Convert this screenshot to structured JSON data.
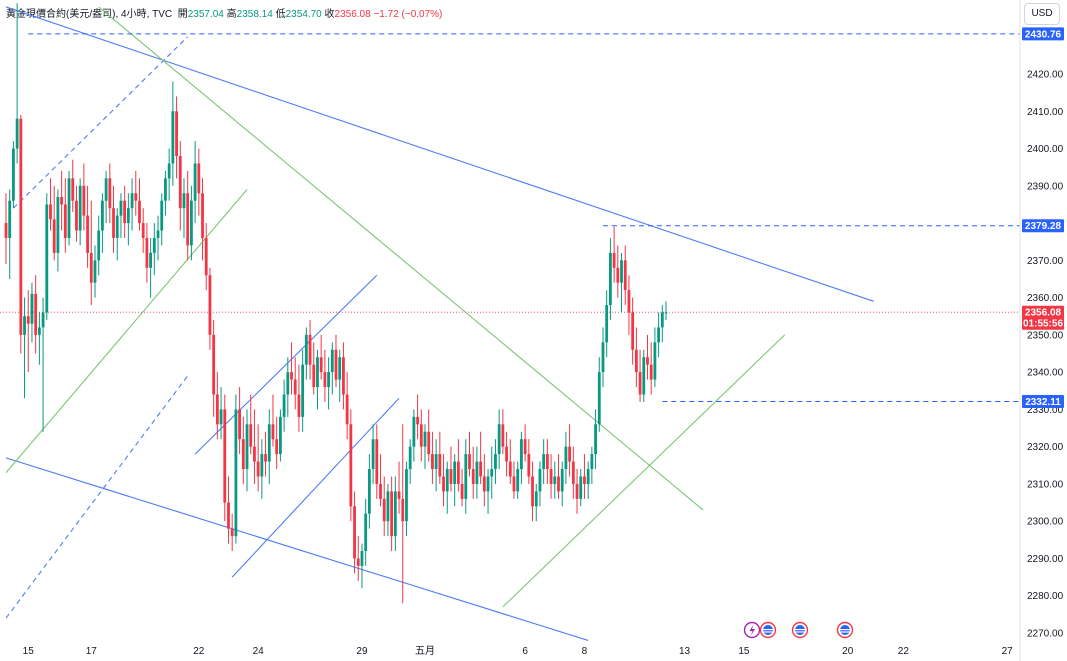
{
  "header": {
    "symbol": "黃金現價合約(美元/盎司)",
    "interval": "4小時",
    "source": "TVC",
    "open_label": "開",
    "open": "2357.04",
    "high_label": "高",
    "high": "2358.14",
    "low_label": "低",
    "low": "2354.70",
    "close_label": "收",
    "close": "2356.08",
    "change": "−1.72 (−0.07%)"
  },
  "currency_button": "USD",
  "colors": {
    "up": "#089981",
    "down": "#f23645",
    "blue": "#2962ff",
    "green": "#4caf50",
    "dashed_blue": "#2962ff",
    "tag_blue": "#2962ff",
    "tag_red": "#f23645"
  },
  "chart_data": {
    "type": "candlestick",
    "ylim": [
      2267,
      2439
    ],
    "y_ticks": [
      "2270.00",
      "2280.00",
      "2290.00",
      "2300.00",
      "2310.00",
      "2320.00",
      "2330.00",
      "2340.00",
      "2350.00",
      "2360.00",
      "2370.00",
      "2380.00",
      "2390.00",
      "2400.00",
      "2410.00",
      "2420.00"
    ],
    "y_tick_values": [
      2270,
      2280,
      2290,
      2300,
      2310,
      2320,
      2330,
      2340,
      2350,
      2360,
      2370,
      2380,
      2390,
      2400,
      2410,
      2420
    ],
    "x_labels": [
      "15",
      "17",
      "22",
      "24",
      "29",
      "五月",
      "6",
      "8",
      "13",
      "15",
      "20",
      "22",
      "27"
    ],
    "x_label_index": [
      6,
      23,
      52,
      68,
      96,
      113,
      140,
      156,
      183,
      199,
      227,
      242,
      270
    ],
    "grid": false,
    "price_tags": [
      {
        "label": "2430.76",
        "value": 2430.76,
        "color": "blue"
      },
      {
        "label": "2379.28",
        "value": 2379.28,
        "color": "blue"
      },
      {
        "label": "2356.08",
        "value": 2356.08,
        "color": "red",
        "sub": "01:55:56"
      },
      {
        "label": "2332.11",
        "value": 2332.11,
        "color": "blue"
      }
    ],
    "h_dashed_lines": [
      {
        "value": 2430.76,
        "from_index": 6
      },
      {
        "value": 2379.28,
        "from_index": 161
      },
      {
        "value": 2332.11,
        "from_index": 177
      }
    ],
    "trend_lines": [
      {
        "color": "blue",
        "style": "solid",
        "points": [
          [
            0,
            2438
          ],
          [
            234,
            2359
          ]
        ]
      },
      {
        "color": "blue",
        "style": "solid",
        "points": [
          [
            0,
            2317
          ],
          [
            157,
            2268
          ]
        ]
      },
      {
        "color": "blue",
        "style": "dashed",
        "points": [
          [
            0,
            2274
          ],
          [
            49,
            2339
          ]
        ]
      },
      {
        "color": "blue",
        "style": "dashed",
        "points": [
          [
            2,
            2384
          ],
          [
            49,
            2430
          ]
        ]
      },
      {
        "color": "green",
        "style": "solid",
        "points": [
          [
            25,
            2438
          ],
          [
            188,
            2303
          ]
        ]
      },
      {
        "color": "green",
        "style": "solid",
        "points": [
          [
            0,
            2313
          ],
          [
            65,
            2389
          ]
        ]
      },
      {
        "color": "green",
        "style": "solid",
        "points": [
          [
            134,
            2277
          ],
          [
            210,
            2350
          ]
        ]
      },
      {
        "color": "blue",
        "style": "solid",
        "points": [
          [
            61,
            2285
          ],
          [
            106,
            2333
          ]
        ]
      },
      {
        "color": "blue",
        "style": "solid",
        "points": [
          [
            51,
            2318
          ],
          [
            100,
            2366
          ]
        ]
      }
    ],
    "candles": [
      [
        2380,
        2388,
        2369,
        2376
      ],
      [
        2376,
        2389,
        2365,
        2386
      ],
      [
        2386,
        2402,
        2384,
        2400
      ],
      [
        2400,
        2439,
        2396,
        2408
      ],
      [
        2408,
        2409,
        2345,
        2350
      ],
      [
        2350,
        2360,
        2333,
        2355
      ],
      [
        2355,
        2362,
        2340,
        2353
      ],
      [
        2353,
        2364,
        2348,
        2361
      ],
      [
        2361,
        2366,
        2345,
        2350
      ],
      [
        2350,
        2356,
        2342,
        2352
      ],
      [
        2352,
        2360,
        2324,
        2356
      ],
      [
        2356,
        2388,
        2354,
        2385
      ],
      [
        2385,
        2392,
        2378,
        2381
      ],
      [
        2381,
        2390,
        2370,
        2372
      ],
      [
        2372,
        2389,
        2367,
        2387
      ],
      [
        2387,
        2394,
        2378,
        2385
      ],
      [
        2385,
        2392,
        2372,
        2376
      ],
      [
        2376,
        2394,
        2374,
        2392
      ],
      [
        2392,
        2397,
        2383,
        2386
      ],
      [
        2386,
        2390,
        2375,
        2378
      ],
      [
        2378,
        2392,
        2374,
        2390
      ],
      [
        2390,
        2396,
        2378,
        2382
      ],
      [
        2382,
        2390,
        2368,
        2372
      ],
      [
        2372,
        2386,
        2358,
        2364
      ],
      [
        2364,
        2374,
        2360,
        2370
      ],
      [
        2370,
        2382,
        2366,
        2378
      ],
      [
        2378,
        2388,
        2372,
        2386
      ],
      [
        2386,
        2394,
        2380,
        2392
      ],
      [
        2392,
        2396,
        2380,
        2384
      ],
      [
        2384,
        2390,
        2372,
        2376
      ],
      [
        2376,
        2384,
        2370,
        2382
      ],
      [
        2382,
        2388,
        2376,
        2386
      ],
      [
        2386,
        2390,
        2376,
        2380
      ],
      [
        2380,
        2388,
        2374,
        2384
      ],
      [
        2384,
        2392,
        2378,
        2388
      ],
      [
        2388,
        2394,
        2382,
        2386
      ],
      [
        2386,
        2392,
        2378,
        2380
      ],
      [
        2380,
        2384,
        2372,
        2376
      ],
      [
        2376,
        2380,
        2364,
        2368
      ],
      [
        2368,
        2376,
        2360,
        2372
      ],
      [
        2372,
        2380,
        2366,
        2376
      ],
      [
        2376,
        2382,
        2370,
        2378
      ],
      [
        2378,
        2388,
        2374,
        2386
      ],
      [
        2386,
        2394,
        2382,
        2392
      ],
      [
        2392,
        2400,
        2386,
        2396
      ],
      [
        2396,
        2418,
        2390,
        2410
      ],
      [
        2410,
        2414,
        2392,
        2398
      ],
      [
        2398,
        2402,
        2378,
        2384
      ],
      [
        2384,
        2392,
        2376,
        2388
      ],
      [
        2388,
        2394,
        2370,
        2374
      ],
      [
        2374,
        2390,
        2370,
        2386
      ],
      [
        2386,
        2402,
        2380,
        2396
      ],
      [
        2396,
        2400,
        2382,
        2388
      ],
      [
        2388,
        2392,
        2370,
        2376
      ],
      [
        2376,
        2380,
        2362,
        2366
      ],
      [
        2366,
        2368,
        2346,
        2350
      ],
      [
        2350,
        2354,
        2328,
        2334
      ],
      [
        2334,
        2340,
        2322,
        2326
      ],
      [
        2326,
        2336,
        2322,
        2330
      ],
      [
        2330,
        2334,
        2300,
        2305
      ],
      [
        2305,
        2312,
        2294,
        2298
      ],
      [
        2298,
        2302,
        2292,
        2296
      ],
      [
        2296,
        2334,
        2294,
        2330
      ],
      [
        2330,
        2336,
        2318,
        2322
      ],
      [
        2322,
        2328,
        2310,
        2314
      ],
      [
        2314,
        2330,
        2308,
        2326
      ],
      [
        2326,
        2334,
        2318,
        2320
      ],
      [
        2320,
        2330,
        2310,
        2316
      ],
      [
        2316,
        2326,
        2308,
        2312
      ],
      [
        2312,
        2322,
        2306,
        2318
      ],
      [
        2318,
        2324,
        2312,
        2316
      ],
      [
        2316,
        2330,
        2310,
        2326
      ],
      [
        2326,
        2334,
        2320,
        2322
      ],
      [
        2322,
        2328,
        2314,
        2318
      ],
      [
        2318,
        2330,
        2316,
        2328
      ],
      [
        2328,
        2338,
        2324,
        2334
      ],
      [
        2334,
        2344,
        2328,
        2340
      ],
      [
        2340,
        2348,
        2334,
        2338
      ],
      [
        2338,
        2344,
        2330,
        2334
      ],
      [
        2334,
        2342,
        2324,
        2328
      ],
      [
        2328,
        2346,
        2324,
        2342
      ],
      [
        2342,
        2352,
        2338,
        2350
      ],
      [
        2350,
        2354,
        2338,
        2342
      ],
      [
        2342,
        2348,
        2334,
        2336
      ],
      [
        2336,
        2346,
        2330,
        2344
      ],
      [
        2344,
        2350,
        2338,
        2340
      ],
      [
        2340,
        2346,
        2332,
        2336
      ],
      [
        2336,
        2344,
        2330,
        2340
      ],
      [
        2340,
        2348,
        2334,
        2346
      ],
      [
        2346,
        2350,
        2336,
        2338
      ],
      [
        2338,
        2346,
        2332,
        2344
      ],
      [
        2344,
        2348,
        2330,
        2334
      ],
      [
        2334,
        2340,
        2322,
        2326
      ],
      [
        2326,
        2330,
        2300,
        2304
      ],
      [
        2304,
        2308,
        2286,
        2290
      ],
      [
        2290,
        2296,
        2284,
        2288
      ],
      [
        2288,
        2294,
        2282,
        2292
      ],
      [
        2292,
        2306,
        2288,
        2302
      ],
      [
        2302,
        2318,
        2298,
        2314
      ],
      [
        2314,
        2326,
        2310,
        2322
      ],
      [
        2322,
        2326,
        2306,
        2310
      ],
      [
        2310,
        2318,
        2304,
        2306
      ],
      [
        2306,
        2312,
        2296,
        2300
      ],
      [
        2300,
        2310,
        2296,
        2308
      ],
      [
        2308,
        2312,
        2292,
        2296
      ],
      [
        2296,
        2312,
        2292,
        2308
      ],
      [
        2308,
        2316,
        2302,
        2306
      ],
      [
        2306,
        2326,
        2278,
        2300
      ],
      [
        2300,
        2316,
        2296,
        2314
      ],
      [
        2314,
        2322,
        2310,
        2320
      ],
      [
        2320,
        2330,
        2316,
        2328
      ],
      [
        2328,
        2334,
        2322,
        2326
      ],
      [
        2326,
        2330,
        2316,
        2320
      ],
      [
        2320,
        2326,
        2314,
        2324
      ],
      [
        2324,
        2330,
        2316,
        2318
      ],
      [
        2318,
        2324,
        2310,
        2314
      ],
      [
        2314,
        2322,
        2308,
        2318
      ],
      [
        2318,
        2324,
        2310,
        2312
      ],
      [
        2312,
        2318,
        2304,
        2308
      ],
      [
        2308,
        2316,
        2302,
        2314
      ],
      [
        2314,
        2320,
        2308,
        2310
      ],
      [
        2310,
        2318,
        2304,
        2316
      ],
      [
        2316,
        2322,
        2308,
        2310
      ],
      [
        2310,
        2314,
        2304,
        2306
      ],
      [
        2306,
        2322,
        2302,
        2318
      ],
      [
        2318,
        2324,
        2312,
        2314
      ],
      [
        2314,
        2320,
        2306,
        2310
      ],
      [
        2310,
        2320,
        2306,
        2316
      ],
      [
        2316,
        2324,
        2310,
        2312
      ],
      [
        2312,
        2318,
        2304,
        2308
      ],
      [
        2308,
        2314,
        2302,
        2312
      ],
      [
        2312,
        2320,
        2306,
        2314
      ],
      [
        2314,
        2322,
        2310,
        2318
      ],
      [
        2318,
        2330,
        2314,
        2326
      ],
      [
        2326,
        2330,
        2318,
        2320
      ],
      [
        2320,
        2324,
        2312,
        2316
      ],
      [
        2316,
        2322,
        2310,
        2312
      ],
      [
        2312,
        2316,
        2306,
        2308
      ],
      [
        2308,
        2316,
        2306,
        2314
      ],
      [
        2314,
        2324,
        2310,
        2322
      ],
      [
        2322,
        2326,
        2316,
        2318
      ],
      [
        2318,
        2322,
        2310,
        2312
      ],
      [
        2312,
        2316,
        2300,
        2304
      ],
      [
        2304,
        2310,
        2300,
        2308
      ],
      [
        2308,
        2316,
        2304,
        2314
      ],
      [
        2314,
        2322,
        2310,
        2318
      ],
      [
        2318,
        2322,
        2310,
        2314
      ],
      [
        2314,
        2318,
        2306,
        2310
      ],
      [
        2310,
        2316,
        2306,
        2312
      ],
      [
        2312,
        2318,
        2306,
        2308
      ],
      [
        2308,
        2316,
        2304,
        2314
      ],
      [
        2314,
        2324,
        2310,
        2320
      ],
      [
        2320,
        2326,
        2312,
        2316
      ],
      [
        2316,
        2320,
        2306,
        2310
      ],
      [
        2310,
        2314,
        2302,
        2306
      ],
      [
        2306,
        2314,
        2304,
        2312
      ],
      [
        2312,
        2318,
        2306,
        2310
      ],
      [
        2310,
        2316,
        2306,
        2314
      ],
      [
        2314,
        2320,
        2310,
        2318
      ],
      [
        2318,
        2330,
        2314,
        2326
      ],
      [
        2326,
        2344,
        2324,
        2340
      ],
      [
        2340,
        2352,
        2336,
        2348
      ],
      [
        2348,
        2362,
        2344,
        2358
      ],
      [
        2358,
        2376,
        2354,
        2372
      ],
      [
        2372,
        2379,
        2364,
        2368
      ],
      [
        2368,
        2374,
        2360,
        2364
      ],
      [
        2364,
        2372,
        2356,
        2370
      ],
      [
        2370,
        2374,
        2358,
        2362
      ],
      [
        2362,
        2366,
        2350,
        2356
      ],
      [
        2356,
        2360,
        2342,
        2346
      ],
      [
        2346,
        2352,
        2336,
        2340
      ],
      [
        2340,
        2346,
        2332,
        2334
      ],
      [
        2334,
        2346,
        2332,
        2344
      ],
      [
        2344,
        2350,
        2338,
        2342
      ],
      [
        2342,
        2348,
        2334,
        2338
      ],
      [
        2338,
        2352,
        2336,
        2348
      ],
      [
        2348,
        2356,
        2344,
        2352
      ],
      [
        2352,
        2358,
        2348,
        2356
      ],
      [
        2356,
        2359,
        2354,
        2356
      ]
    ]
  }
}
